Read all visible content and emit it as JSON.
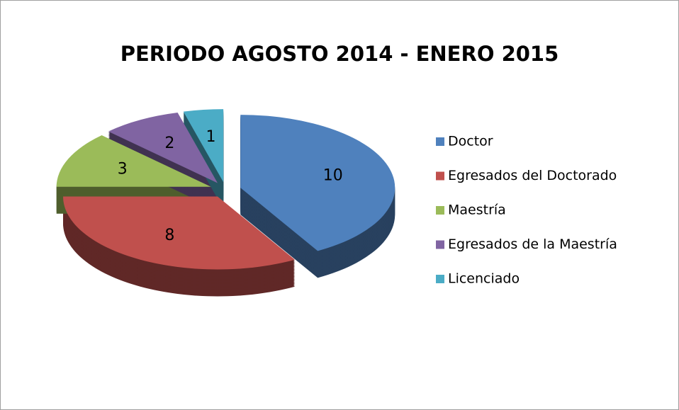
{
  "chart_data": {
    "type": "pie",
    "title": "PERIODO AGOSTO 2014 - ENERO 2015",
    "categories": [
      "Doctor",
      "Egresados del Doctorado",
      "Maestría",
      "Egresados de la Maestría",
      "Licenciado"
    ],
    "values": [
      10,
      8,
      3,
      2,
      1
    ],
    "colors": [
      "#4f81bd",
      "#c0504d",
      "#9bbb59",
      "#8064a2",
      "#4bacc6"
    ],
    "legend": "right"
  }
}
